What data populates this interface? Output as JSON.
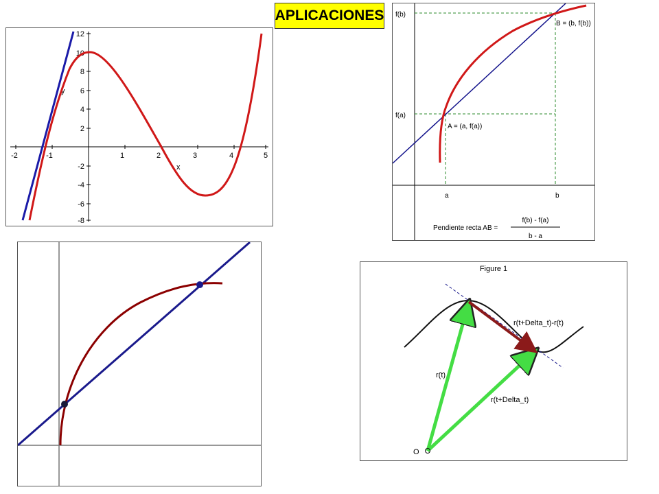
{
  "title": "APLICACIONES",
  "graph1": {
    "x_ticks": [
      "-2",
      "-1",
      "1",
      "2",
      "3",
      "4",
      "5"
    ],
    "y_ticks": [
      "12",
      "10",
      "8",
      "6",
      "4",
      "2",
      "-2",
      "-4",
      "-6",
      "-8"
    ],
    "x_label": "x",
    "y_label": "y",
    "curve_color": "#d01818",
    "tangent_color": "#1a1aa8"
  },
  "graph2": {
    "fb_label": "f(b)",
    "fa_label": "f(a)",
    "b_point_label": "B = (b, f(b))",
    "a_point_label": "A = (a, f(a))",
    "a_tick": "a",
    "b_tick": "b",
    "slope_label": "Pendiente recta AB =",
    "numerator": "f(b) - f(a)",
    "denominator": "b - a",
    "curve_color": "#d01818",
    "line_color": "#14148c",
    "guide_color": "#2a8a2a"
  },
  "graph3": {
    "curve_color": "#8b0000",
    "line_color": "#1a1a8c"
  },
  "graph4": {
    "figure_title": "Figure 1",
    "label_difference": "r(t+Delta_t)-r(t)",
    "label_rt": "r(t)",
    "label_rtdt": "r(t+Delta_t)",
    "label_origin": "O",
    "arrow_color": "#44dd44",
    "diff_arrow_color": "#8b1a1a"
  }
}
